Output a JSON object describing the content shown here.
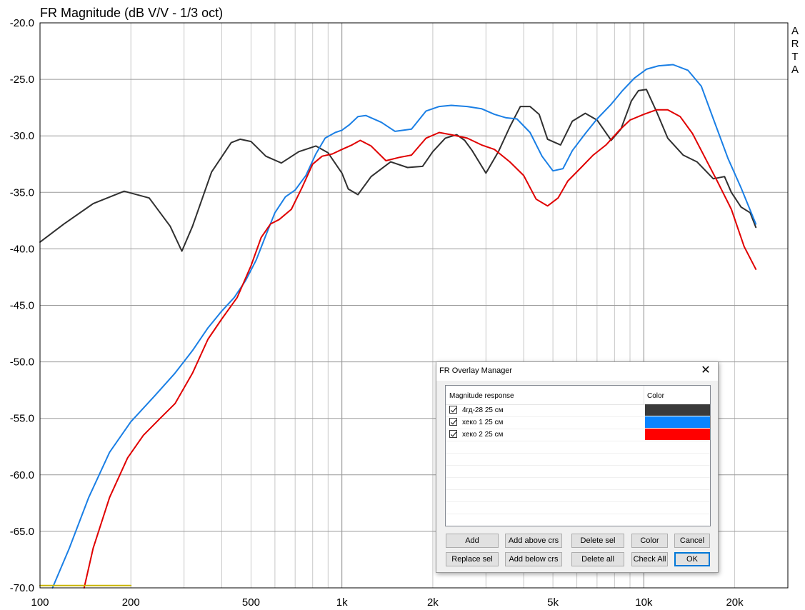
{
  "chart_data": {
    "type": "line",
    "title": "FR Magnitude (dB V/V - 1/3 oct)",
    "side_label": "ARTA",
    "x_scale": "log",
    "xlim": [
      100,
      30000
    ],
    "ylim": [
      -70,
      -20
    ],
    "x_tick_labels": [
      {
        "value": 100,
        "label": "100"
      },
      {
        "value": 200,
        "label": "200"
      },
      {
        "value": 500,
        "label": "500"
      },
      {
        "value": 1000,
        "label": "1k"
      },
      {
        "value": 2000,
        "label": "2k"
      },
      {
        "value": 5000,
        "label": "5k"
      },
      {
        "value": 10000,
        "label": "10k"
      },
      {
        "value": 20000,
        "label": "20k"
      }
    ],
    "y_ticks": [
      {
        "value": -20,
        "label": "-20.0"
      },
      {
        "value": -25,
        "label": "-25.0"
      },
      {
        "value": -30,
        "label": "-30.0"
      },
      {
        "value": -35,
        "label": "-35.0"
      },
      {
        "value": -40,
        "label": "-40.0"
      },
      {
        "value": -45,
        "label": "-45.0"
      },
      {
        "value": -50,
        "label": "-50.0"
      },
      {
        "value": -55,
        "label": "-55.0"
      },
      {
        "value": -60,
        "label": "-60.0"
      },
      {
        "value": -65,
        "label": "-65.0"
      },
      {
        "value": -70,
        "label": "-70.0"
      }
    ],
    "grid": true,
    "series": [
      {
        "name": "4гд-28 25 см",
        "color": "#303030",
        "x": [
          100,
          120,
          150,
          190,
          230,
          270,
          295,
          320,
          370,
          430,
          460,
          500,
          560,
          630,
          720,
          820,
          900,
          1000,
          1050,
          1130,
          1250,
          1450,
          1650,
          1850,
          2000,
          2200,
          2400,
          2550,
          2700,
          3000,
          3300,
          3600,
          3900,
          4200,
          4500,
          4800,
          5300,
          5800,
          6400,
          7000,
          7800,
          8400,
          9100,
          9600,
          10200,
          11000,
          12000,
          13500,
          15000,
          17000,
          18500,
          19500,
          21000,
          22500,
          23500
        ],
        "y": [
          -39.4,
          -37.8,
          -36.0,
          -34.9,
          -35.5,
          -38.0,
          -40.2,
          -38.0,
          -33.2,
          -30.6,
          -30.3,
          -30.5,
          -31.8,
          -32.4,
          -31.4,
          -30.9,
          -31.5,
          -33.3,
          -34.7,
          -35.2,
          -33.6,
          -32.3,
          -32.8,
          -32.7,
          -31.4,
          -30.2,
          -29.9,
          -30.4,
          -31.3,
          -33.3,
          -31.4,
          -29.2,
          -27.4,
          -27.4,
          -28.1,
          -30.3,
          -30.8,
          -28.7,
          -28.0,
          -28.6,
          -30.4,
          -29.4,
          -26.9,
          -26.0,
          -25.9,
          -27.8,
          -30.2,
          -31.7,
          -32.3,
          -33.8,
          -33.6,
          -35.0,
          -36.3,
          -36.8,
          -38.1
        ]
      },
      {
        "name": "хеко 1 25 см",
        "color": "#1a7fe5",
        "x": [
          110,
          125,
          145,
          170,
          200,
          240,
          280,
          320,
          360,
          400,
          440,
          480,
          520,
          560,
          600,
          650,
          700,
          760,
          820,
          880,
          950,
          1000,
          1060,
          1130,
          1200,
          1350,
          1500,
          1700,
          1900,
          2100,
          2300,
          2600,
          2900,
          3200,
          3500,
          3800,
          4200,
          4600,
          5000,
          5400,
          5800,
          6400,
          7000,
          7800,
          8500,
          9300,
          10200,
          11200,
          12500,
          14000,
          15500,
          17000,
          19000,
          21000,
          23500
        ],
        "y": [
          -70.0,
          -66.5,
          -62.0,
          -58.0,
          -55.3,
          -53.0,
          -51.0,
          -49.0,
          -47.0,
          -45.5,
          -44.3,
          -42.8,
          -41.0,
          -38.8,
          -36.8,
          -35.4,
          -34.8,
          -33.5,
          -31.6,
          -30.2,
          -29.7,
          -29.5,
          -29.0,
          -28.3,
          -28.2,
          -28.8,
          -29.6,
          -29.4,
          -27.8,
          -27.4,
          -27.3,
          -27.4,
          -27.6,
          -28.1,
          -28.4,
          -28.5,
          -29.7,
          -31.8,
          -33.1,
          -32.9,
          -31.3,
          -29.8,
          -28.5,
          -27.2,
          -26.0,
          -24.9,
          -24.1,
          -23.8,
          -23.7,
          -24.2,
          -25.6,
          -28.5,
          -32.0,
          -34.6,
          -37.8
        ]
      },
      {
        "name": "хеко 2 25 см",
        "color": "#e00000",
        "x": [
          140,
          150,
          170,
          195,
          220,
          250,
          280,
          320,
          360,
          400,
          450,
          500,
          540,
          580,
          620,
          680,
          740,
          800,
          860,
          930,
          1000,
          1080,
          1150,
          1250,
          1400,
          1550,
          1700,
          1900,
          2100,
          2300,
          2600,
          2900,
          3200,
          3600,
          4000,
          4400,
          4800,
          5200,
          5600,
          6200,
          6800,
          7500,
          8300,
          9000,
          10000,
          11000,
          12000,
          13200,
          14500,
          16000,
          17500,
          19500,
          21500,
          23500
        ],
        "y": [
          -70.0,
          -66.5,
          -62.0,
          -58.5,
          -56.5,
          -55.0,
          -53.7,
          -51.0,
          -48.0,
          -46.2,
          -44.3,
          -41.5,
          -39.0,
          -37.8,
          -37.4,
          -36.5,
          -34.5,
          -32.5,
          -31.8,
          -31.6,
          -31.2,
          -30.8,
          -30.4,
          -30.9,
          -32.2,
          -31.9,
          -31.7,
          -30.2,
          -29.7,
          -29.9,
          -30.2,
          -30.8,
          -31.2,
          -32.3,
          -33.5,
          -35.6,
          -36.2,
          -35.5,
          -34.0,
          -32.8,
          -31.7,
          -30.8,
          -29.5,
          -28.6,
          -28.1,
          -27.7,
          -27.7,
          -28.3,
          -29.8,
          -32.0,
          -34.0,
          -36.5,
          -39.8,
          -41.8
        ]
      },
      {
        "name": "",
        "color": "#c8b400",
        "x": [
          100,
          200
        ],
        "y": [
          -69.8,
          -69.8
        ]
      }
    ]
  },
  "overlay_manager": {
    "title": "FR Overlay Manager",
    "close_glyph": "✕",
    "col_name": "Magnitude response",
    "col_color": "Color",
    "items": [
      {
        "label": "4гд-28 25 см",
        "color": "#3a3a3a",
        "checked": true
      },
      {
        "label": "хеко 1 25 см",
        "color": "#0a84ff",
        "checked": true
      },
      {
        "label": "хеко 2 25 см",
        "color": "#ff0000",
        "checked": true
      }
    ],
    "buttons": {
      "add": "Add",
      "add_above": "Add above crs",
      "delete_sel": "Delete sel",
      "color": "Color",
      "cancel": "Cancel",
      "replace_sel": "Replace sel",
      "add_below": "Add below crs",
      "delete_all": "Delete all",
      "check_all": "Check All",
      "ok": "OK"
    }
  }
}
